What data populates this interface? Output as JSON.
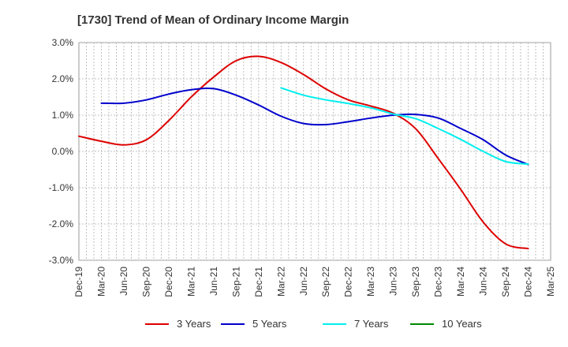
{
  "chart_data": {
    "type": "line",
    "title": "[1730]  Trend of Mean of Ordinary Income Margin",
    "xlabel": "",
    "ylabel": "",
    "x_ticks": [
      "Dec-19",
      "Mar-20",
      "Jun-20",
      "Sep-20",
      "Dec-20",
      "Mar-21",
      "Jun-21",
      "Sep-21",
      "Dec-21",
      "Mar-22",
      "Jun-22",
      "Sep-22",
      "Dec-22",
      "Mar-23",
      "Jun-23",
      "Sep-23",
      "Dec-23",
      "Mar-24",
      "Jun-24",
      "Sep-24",
      "Dec-24",
      "Mar-25"
    ],
    "y_ticks": [
      "3.0%",
      "2.0%",
      "1.0%",
      "0.0%",
      "-1.0%",
      "-2.0%",
      "-3.0%"
    ],
    "ylim": [
      -3.0,
      3.0
    ],
    "y_unit": "%",
    "grid": true,
    "legend_position": "bottom",
    "series": [
      {
        "name": "3 Years",
        "color": "#dd0000",
        "values": [
          0.42,
          0.28,
          0.18,
          0.32,
          0.85,
          1.5,
          2.05,
          2.5,
          2.62,
          2.45,
          2.12,
          1.72,
          1.42,
          1.25,
          1.05,
          0.62,
          -0.2,
          -1.05,
          -1.95,
          -2.55,
          -2.68,
          null
        ]
      },
      {
        "name": "5 Years",
        "color": "#0000cc",
        "values": [
          null,
          1.33,
          1.33,
          1.42,
          1.58,
          1.7,
          1.73,
          1.55,
          1.28,
          0.97,
          0.77,
          0.74,
          0.82,
          0.92,
          1.0,
          1.02,
          0.92,
          0.63,
          0.32,
          -0.1,
          -0.36,
          null
        ]
      },
      {
        "name": "7 Years",
        "color": "#00eeee",
        "values": [
          null,
          null,
          null,
          null,
          null,
          null,
          null,
          null,
          null,
          1.75,
          1.55,
          1.42,
          1.32,
          1.2,
          1.03,
          0.9,
          0.63,
          0.33,
          0.0,
          -0.28,
          -0.35,
          null
        ]
      },
      {
        "name": "10 Years",
        "color": "#008800",
        "values": [
          null,
          null,
          null,
          null,
          null,
          null,
          null,
          null,
          null,
          null,
          null,
          null,
          null,
          null,
          null,
          null,
          null,
          null,
          null,
          null,
          null,
          null
        ]
      }
    ]
  }
}
